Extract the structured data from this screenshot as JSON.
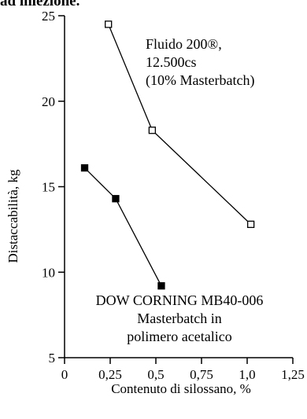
{
  "page_header_fragment": "ad iniezione.",
  "chart_data": {
    "type": "line",
    "title": "",
    "xlabel": "Contenuto di silossano, %",
    "ylabel": "Distaccabilità, kg",
    "xlim": [
      0,
      1.25
    ],
    "ylim": [
      5,
      25
    ],
    "x_ticks": [
      0,
      0.25,
      0.5,
      0.75,
      1.0,
      1.25
    ],
    "x_tick_labels": [
      "0",
      "0,25",
      "0,5",
      "0,75",
      "1,0",
      "1,25"
    ],
    "y_ticks": [
      5,
      10,
      15,
      20,
      25
    ],
    "y_tick_labels": [
      "5",
      "10",
      "15",
      "20",
      "25"
    ],
    "grid": false,
    "legend": "none",
    "series": [
      {
        "label_lines": [
          "Fluido 200®,",
          "12.500cs",
          "(10% Masterbatch)"
        ],
        "marker": "open-square",
        "color": "#000000",
        "points": [
          [
            0.24,
            24.5
          ],
          [
            0.48,
            18.3
          ],
          [
            1.02,
            12.8
          ]
        ]
      },
      {
        "label_lines": [
          "DOW CORNING MB40-006",
          "Masterbatch in",
          "polimero acetalico"
        ],
        "marker": "filled-square",
        "color": "#000000",
        "points": [
          [
            0.11,
            16.1
          ],
          [
            0.28,
            14.3
          ],
          [
            0.53,
            9.2
          ]
        ]
      }
    ]
  }
}
